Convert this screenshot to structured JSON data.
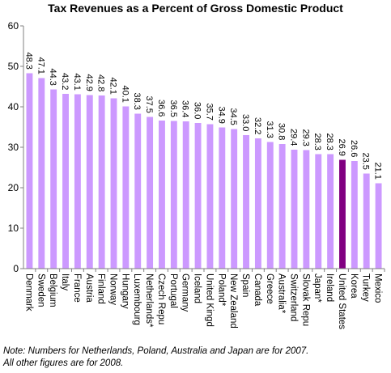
{
  "chart_data": {
    "type": "bar",
    "title": "Tax Revenues as a Percent of Gross Domestic Product",
    "categories": [
      "Denmark",
      "Sweden",
      "Belgium",
      "Italy",
      "France",
      "Austria",
      "Finland",
      "Norway",
      "Hungary",
      "Luxembourg",
      "Netherlands*",
      "Czech Repu",
      "Portugal",
      "Germany",
      "Iceland",
      "United Kingd",
      "Poland*",
      "New Zealand",
      "Spain",
      "Canada",
      "Greece",
      "Australia*",
      "Switzerland",
      "Slovak Repu",
      "Japan*",
      "Ireland",
      "United States",
      "Korea",
      "Turkey",
      "Mexico"
    ],
    "values": [
      48.3,
      47.1,
      44.3,
      43.2,
      43.1,
      42.9,
      42.8,
      42.1,
      40.1,
      38.3,
      37.5,
      36.6,
      36.5,
      36.4,
      36.0,
      35.7,
      34.9,
      34.5,
      33.0,
      32.2,
      31.3,
      30.8,
      29.4,
      29.3,
      28.3,
      28.3,
      26.9,
      26.6,
      23.5,
      21.1
    ],
    "value_labels": [
      "48.3",
      "47.1",
      "44.3",
      "43.2",
      "43.1",
      "42.9",
      "42.8",
      "42.1",
      "40.1",
      "38.3",
      "37.5",
      "36.6",
      "36.5",
      "36.4",
      "36.0",
      "35.7",
      "34.9",
      "34.5",
      "33.0",
      "32.2",
      "31.3",
      "30.8",
      "29.4",
      "29.3",
      "28.3",
      "28.3",
      "26.9",
      "26.6",
      "23.5",
      "21.1"
    ],
    "highlight_category": "United States",
    "ylim": [
      0,
      60
    ],
    "yticks": [
      "0",
      "10",
      "20",
      "30",
      "40",
      "50",
      "60"
    ],
    "grid": false,
    "colors": {
      "bar": "#cc99ff",
      "highlight": "#800080",
      "axis": "#808080"
    }
  },
  "notes": [
    "Note: Numbers for Netherlands, Poland, Australia and Japan are for 2007.",
    "All other figures are for 2008."
  ]
}
